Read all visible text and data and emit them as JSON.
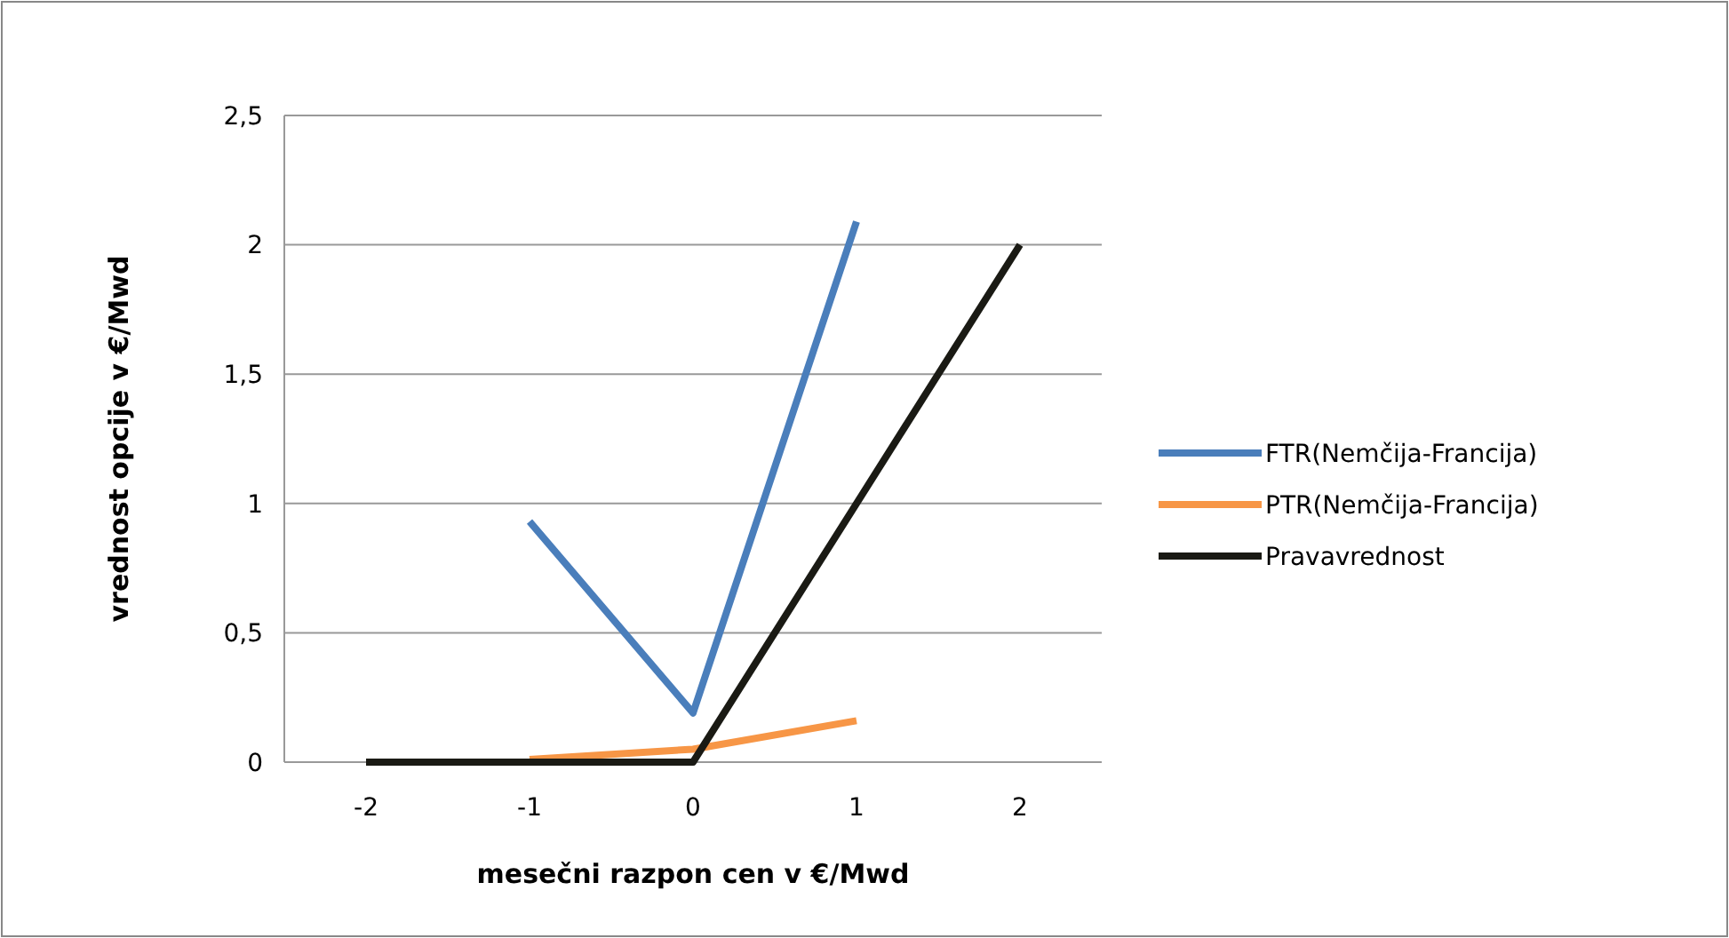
{
  "chart_data": {
    "type": "line",
    "xlabel": "mesečni razpon cen v €/Mwd",
    "ylabel": "vrednost opcije v €/Mwd",
    "categories": [
      "-2",
      "-1",
      "0",
      "1",
      "2"
    ],
    "ylim": [
      0,
      2.5
    ],
    "yticks": [
      {
        "value": 0,
        "label": "0"
      },
      {
        "value": 0.5,
        "label": "0,5"
      },
      {
        "value": 1,
        "label": "1"
      },
      {
        "value": 1.5,
        "label": "1,5"
      },
      {
        "value": 2,
        "label": "2"
      },
      {
        "value": 2.5,
        "label": "2,5"
      }
    ],
    "grid": "y",
    "legend": "right",
    "series": [
      {
        "name": "FTR(Nemčija-Francija)",
        "color": "#4a7ebb",
        "values": [
          null,
          0.93,
          0.19,
          2.09,
          null
        ]
      },
      {
        "name": "PTR(Nemčija-Francija)",
        "color": "#f79646",
        "values": [
          null,
          0.01,
          0.05,
          0.16,
          null
        ]
      },
      {
        "name": "Pravavrednost",
        "color": "#1a1a14",
        "values": [
          0,
          0,
          0,
          1,
          2
        ]
      }
    ]
  }
}
